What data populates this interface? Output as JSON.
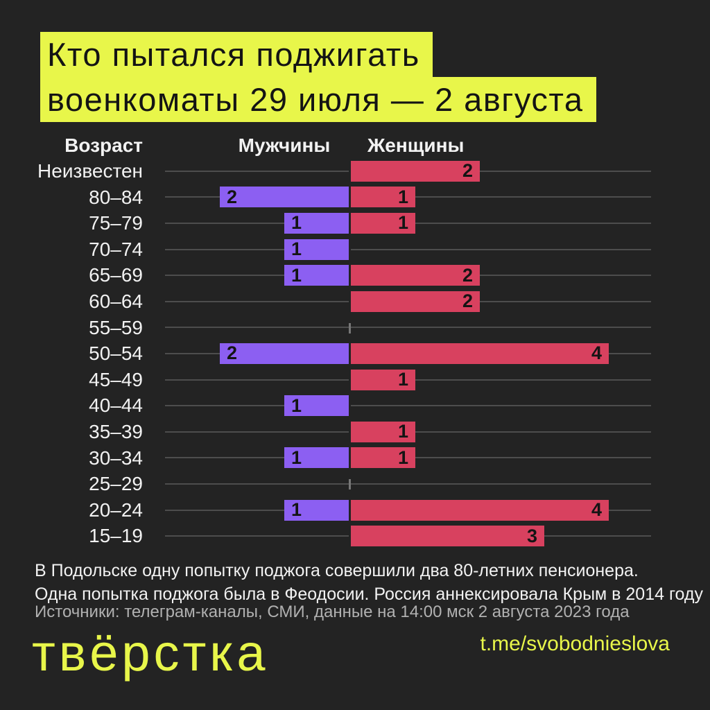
{
  "title": {
    "line1": "Кто пытался поджигать",
    "line2": "военкоматы 29 июля — 2 августа"
  },
  "chart_data": {
    "type": "bar",
    "orientation": "diverging-horizontal",
    "column_headers": {
      "age": "Возраст",
      "men": "Мужчины",
      "women": "Женщины"
    },
    "categories": [
      "Неизвестен",
      "80–84",
      "75–79",
      "70–74",
      "65–69",
      "60–64",
      "55–59",
      "50–54",
      "45–49",
      "40–44",
      "35–39",
      "30–34",
      "25–29",
      "20–24",
      "15–19"
    ],
    "series": [
      {
        "name": "Мужчины",
        "color": "#8c5ff2",
        "values": [
          0,
          2,
          1,
          1,
          1,
          0,
          0,
          2,
          0,
          1,
          0,
          1,
          0,
          1,
          0
        ]
      },
      {
        "name": "Женщины",
        "color": "#d8415f",
        "values": [
          2,
          1,
          1,
          0,
          2,
          2,
          0,
          4,
          1,
          0,
          1,
          1,
          0,
          4,
          3
        ]
      }
    ],
    "xmax": 4,
    "value_labels_shown": true,
    "grid": "horizontal-row-lines"
  },
  "footnotes": {
    "line1": "В Подольске одну попытку поджога совершили два 80-летних пенсионера.",
    "line2": "Одна попытка поджога была в Феодосии. Россия аннексировала Крым в 2014 году"
  },
  "source": "Источники: телеграм-каналы, СМИ, данные на 14:00 мск 2 августа 2023 года",
  "footer": {
    "logo": "твёрстка",
    "link": "t.me/svobodnieslova"
  },
  "colors": {
    "background": "#232323",
    "accent_yellow": "#e8f64a",
    "men_bar": "#8c5ff2",
    "women_bar": "#d8415f",
    "gridline": "#4d4d4d",
    "tick": "#777777",
    "text_primary": "#f2f2f2",
    "text_secondary": "#b1b1b1",
    "bar_value_text": "#141414",
    "title_text": "#141414"
  }
}
